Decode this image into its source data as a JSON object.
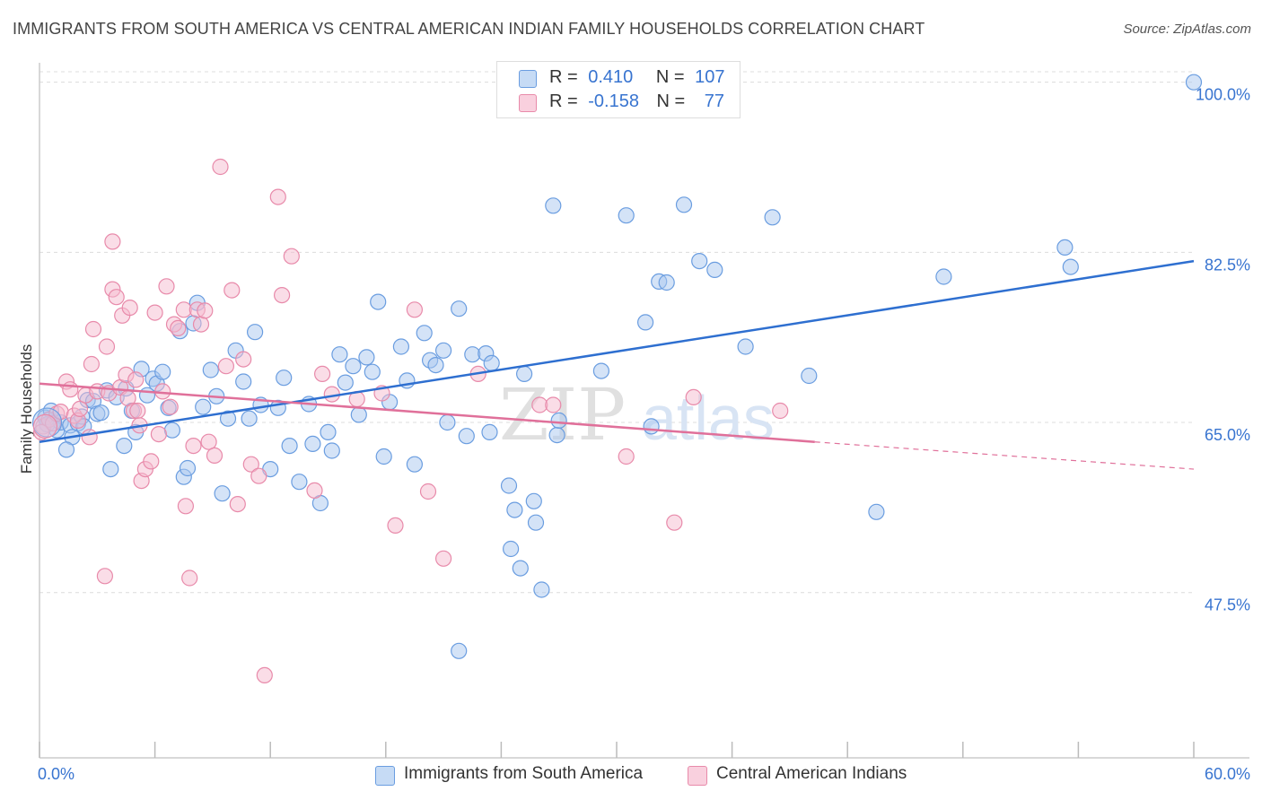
{
  "header": {
    "title": "IMMIGRANTS FROM SOUTH AMERICA VS CENTRAL AMERICAN INDIAN FAMILY HOUSEHOLDS CORRELATION CHART",
    "source": "Source: ZipAtlas.com"
  },
  "legend": {
    "rows": [
      {
        "r_label": "R =",
        "r_value": "0.410",
        "n_label": "N =",
        "n_value": "107"
      },
      {
        "r_label": "R =",
        "r_value": "-0.158",
        "n_label": "N =",
        "n_value": "77"
      }
    ]
  },
  "watermark": {
    "zip": "ZIP",
    "atlas": "atlas"
  },
  "colors": {
    "blue_fill": "#a9c8f0",
    "blue_stroke": "#6a9de0",
    "blue_line": "#2e6fd0",
    "pink_fill": "#f6bcd0",
    "pink_stroke": "#e88aaa",
    "pink_line": "#e0709a",
    "tick_label": "#3874d0",
    "grid": "#dcdcdc"
  },
  "chart_data": {
    "type": "scatter",
    "title": "IMMIGRANTS FROM SOUTH AMERICA VS CENTRAL AMERICAN INDIAN FAMILY HOUSEHOLDS CORRELATION CHART",
    "xlabel": "",
    "ylabel": "Family Households",
    "xlim": [
      0,
      60
    ],
    "ylim": [
      30.5,
      102
    ],
    "x_tick_labels": [
      "0.0%",
      "60.0%"
    ],
    "y_ticks": [
      47.5,
      65.0,
      82.5,
      100.0
    ],
    "y_tick_labels": [
      "47.5%",
      "65.0%",
      "82.5%",
      "100.0%"
    ],
    "grid": true,
    "legend_position": "bottom",
    "series": [
      {
        "name": "Immigrants from South America",
        "color": "#a9c8f0",
        "trend": {
          "x": [
            0,
            60
          ],
          "y": [
            63.0,
            81.6
          ]
        },
        "points": [
          [
            0.3,
            65.5
          ],
          [
            0.6,
            66.2
          ],
          [
            0.4,
            64.8
          ],
          [
            0.9,
            64.2
          ],
          [
            1.1,
            65.0
          ],
          [
            1.6,
            64.7
          ],
          [
            1.7,
            63.5
          ],
          [
            1.4,
            62.2
          ],
          [
            2.0,
            64.9
          ],
          [
            2.2,
            65.6
          ],
          [
            2.3,
            64.6
          ],
          [
            2.5,
            67.3
          ],
          [
            2.8,
            67.2
          ],
          [
            3.0,
            65.9
          ],
          [
            3.2,
            66.0
          ],
          [
            3.5,
            68.3
          ],
          [
            3.7,
            60.2
          ],
          [
            4.0,
            67.6
          ],
          [
            4.4,
            62.6
          ],
          [
            4.5,
            68.5
          ],
          [
            4.8,
            66.2
          ],
          [
            5.0,
            64.0
          ],
          [
            5.3,
            70.5
          ],
          [
            5.6,
            67.8
          ],
          [
            5.9,
            69.5
          ],
          [
            6.1,
            69.0
          ],
          [
            6.4,
            70.2
          ],
          [
            6.7,
            66.5
          ],
          [
            6.9,
            64.2
          ],
          [
            7.3,
            74.4
          ],
          [
            7.5,
            59.4
          ],
          [
            7.7,
            60.3
          ],
          [
            8.0,
            75.2
          ],
          [
            8.2,
            77.3
          ],
          [
            8.5,
            66.6
          ],
          [
            8.9,
            70.4
          ],
          [
            9.2,
            67.7
          ],
          [
            9.5,
            57.7
          ],
          [
            9.8,
            65.4
          ],
          [
            10.2,
            72.4
          ],
          [
            10.6,
            69.2
          ],
          [
            10.9,
            65.4
          ],
          [
            11.2,
            74.3
          ],
          [
            11.5,
            66.8
          ],
          [
            12.0,
            60.2
          ],
          [
            12.4,
            66.5
          ],
          [
            12.7,
            69.6
          ],
          [
            13.0,
            62.6
          ],
          [
            13.5,
            58.9
          ],
          [
            14.0,
            66.9
          ],
          [
            14.2,
            62.8
          ],
          [
            14.6,
            56.7
          ],
          [
            15.0,
            64.0
          ],
          [
            15.2,
            62.1
          ],
          [
            15.6,
            72.0
          ],
          [
            15.9,
            69.1
          ],
          [
            16.3,
            70.8
          ],
          [
            16.6,
            65.8
          ],
          [
            17.0,
            71.7
          ],
          [
            17.3,
            70.2
          ],
          [
            17.6,
            77.4
          ],
          [
            17.9,
            61.5
          ],
          [
            18.2,
            67.1
          ],
          [
            18.8,
            72.8
          ],
          [
            19.1,
            69.3
          ],
          [
            19.5,
            60.7
          ],
          [
            20.0,
            74.2
          ],
          [
            20.3,
            71.4
          ],
          [
            20.6,
            70.9
          ],
          [
            21.0,
            72.4
          ],
          [
            21.2,
            65.0
          ],
          [
            21.8,
            76.7
          ],
          [
            22.2,
            63.6
          ],
          [
            22.5,
            72.0
          ],
          [
            23.2,
            72.1
          ],
          [
            23.4,
            64.0
          ],
          [
            23.5,
            71.1
          ],
          [
            24.4,
            58.5
          ],
          [
            24.5,
            52.0
          ],
          [
            24.7,
            56.0
          ],
          [
            25.0,
            50.0
          ],
          [
            25.2,
            70.0
          ],
          [
            25.7,
            56.9
          ],
          [
            25.8,
            54.7
          ],
          [
            26.1,
            47.8
          ],
          [
            26.7,
            87.3
          ],
          [
            26.9,
            63.7
          ],
          [
            27.0,
            65.2
          ],
          [
            27.3,
            100.0
          ],
          [
            29.2,
            70.3
          ],
          [
            30.5,
            86.3
          ],
          [
            31.5,
            75.3
          ],
          [
            31.8,
            64.6
          ],
          [
            32.2,
            79.5
          ],
          [
            32.6,
            79.4
          ],
          [
            33.5,
            87.4
          ],
          [
            34.3,
            81.6
          ],
          [
            35.1,
            80.7
          ],
          [
            36.7,
            72.8
          ],
          [
            38.1,
            86.1
          ],
          [
            40.0,
            69.8
          ],
          [
            43.5,
            55.8
          ],
          [
            47.0,
            80.0
          ],
          [
            53.3,
            83.0
          ],
          [
            53.6,
            81.0
          ],
          [
            60.0,
            100.0
          ],
          [
            21.8,
            41.5
          ]
        ]
      },
      {
        "name": "Central American Indians",
        "color": "#f6bcd0",
        "trend": {
          "x": [
            0,
            40.3
          ],
          "y": [
            69.0,
            63.0
          ]
        },
        "trend_dashed": {
          "x": [
            40.3,
            60
          ],
          "y": [
            63.0,
            60.2
          ]
        },
        "points": [
          [
            0.2,
            64.6
          ],
          [
            0.5,
            65.3
          ],
          [
            0.7,
            64.9
          ],
          [
            0.9,
            65.9
          ],
          [
            1.1,
            66.1
          ],
          [
            1.4,
            69.2
          ],
          [
            1.6,
            68.4
          ],
          [
            1.8,
            65.7
          ],
          [
            2.0,
            65.2
          ],
          [
            2.1,
            66.4
          ],
          [
            2.4,
            67.8
          ],
          [
            2.6,
            63.5
          ],
          [
            2.7,
            71.0
          ],
          [
            2.8,
            74.6
          ],
          [
            3.0,
            68.2
          ],
          [
            3.4,
            49.2
          ],
          [
            3.5,
            72.8
          ],
          [
            3.6,
            68.0
          ],
          [
            3.8,
            83.6
          ],
          [
            3.8,
            78.7
          ],
          [
            4.0,
            77.9
          ],
          [
            4.2,
            68.6
          ],
          [
            4.3,
            76.0
          ],
          [
            4.5,
            69.9
          ],
          [
            4.6,
            67.5
          ],
          [
            4.7,
            76.8
          ],
          [
            4.9,
            66.2
          ],
          [
            5.0,
            69.4
          ],
          [
            5.1,
            66.2
          ],
          [
            5.2,
            64.7
          ],
          [
            5.3,
            59.0
          ],
          [
            5.5,
            60.2
          ],
          [
            5.8,
            61.0
          ],
          [
            6.0,
            76.3
          ],
          [
            6.2,
            63.8
          ],
          [
            6.4,
            68.2
          ],
          [
            6.6,
            79.0
          ],
          [
            6.8,
            66.6
          ],
          [
            7.0,
            75.1
          ],
          [
            7.2,
            74.7
          ],
          [
            7.5,
            76.6
          ],
          [
            7.6,
            56.4
          ],
          [
            7.8,
            49.0
          ],
          [
            8.0,
            62.6
          ],
          [
            8.2,
            76.6
          ],
          [
            8.4,
            75.1
          ],
          [
            8.6,
            76.5
          ],
          [
            8.8,
            63.0
          ],
          [
            9.1,
            61.6
          ],
          [
            9.4,
            91.3
          ],
          [
            9.7,
            70.8
          ],
          [
            10.0,
            78.6
          ],
          [
            10.3,
            56.6
          ],
          [
            10.6,
            71.5
          ],
          [
            11.0,
            60.7
          ],
          [
            11.4,
            59.5
          ],
          [
            11.7,
            39.0
          ],
          [
            12.4,
            88.2
          ],
          [
            12.6,
            78.1
          ],
          [
            13.1,
            82.1
          ],
          [
            14.3,
            58.0
          ],
          [
            14.7,
            70.0
          ],
          [
            15.2,
            67.9
          ],
          [
            16.5,
            67.4
          ],
          [
            17.8,
            68.0
          ],
          [
            18.5,
            54.4
          ],
          [
            19.5,
            76.6
          ],
          [
            20.2,
            57.9
          ],
          [
            21.0,
            51.0
          ],
          [
            22.8,
            70.0
          ],
          [
            26.0,
            66.8
          ],
          [
            26.7,
            66.8
          ],
          [
            30.5,
            61.5
          ],
          [
            33.0,
            54.7
          ],
          [
            34.0,
            67.6
          ],
          [
            38.5,
            66.2
          ],
          [
            0.1,
            64.0
          ]
        ]
      }
    ]
  },
  "bottom_legend": {
    "items": [
      {
        "label": "Immigrants from South America"
      },
      {
        "label": "Central American Indians"
      }
    ]
  }
}
